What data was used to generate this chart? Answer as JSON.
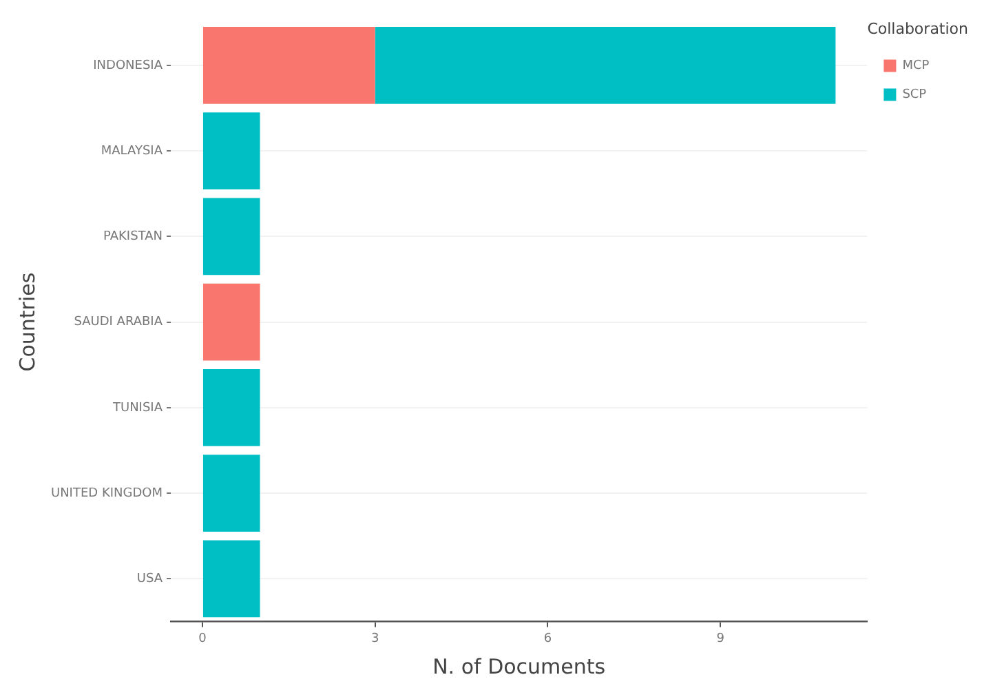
{
  "chart_data": {
    "type": "bar",
    "orientation": "horizontal",
    "stacked": true,
    "xlabel": "N. of Documents",
    "ylabel": "Countries",
    "legend_title": "Collaboration",
    "legend": "top right",
    "grid": "y",
    "categories": [
      "INDONESIA",
      "MALAYSIA",
      "PAKISTAN",
      "SAUDI ARABIA",
      "TUNISIA",
      "UNITED KINGDOM",
      "USA"
    ],
    "series": [
      {
        "name": "MCP",
        "color": "#f8766d",
        "values": [
          3,
          0,
          0,
          1,
          0,
          0,
          0
        ]
      },
      {
        "name": "SCP",
        "color": "#00bfc4",
        "values": [
          8,
          1,
          1,
          0,
          1,
          1,
          1
        ]
      }
    ],
    "xlim": [
      -0.55,
      11.55
    ],
    "xticks": [
      0,
      3,
      6,
      9
    ]
  }
}
